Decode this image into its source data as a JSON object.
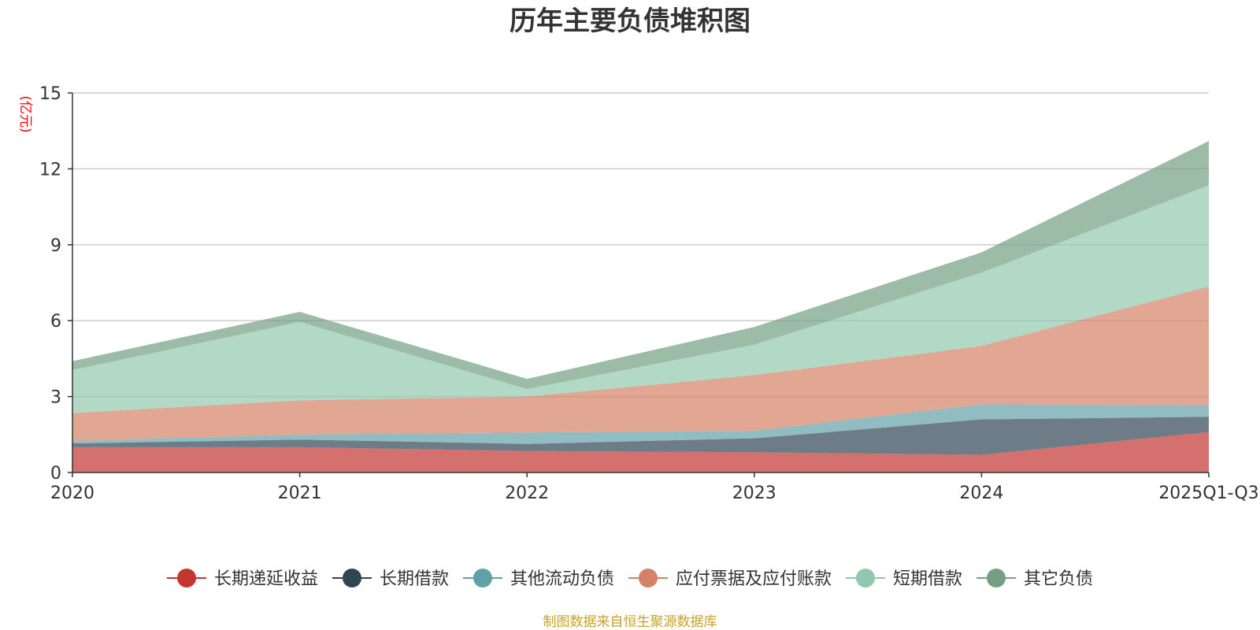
{
  "chart_data": {
    "type": "area",
    "stacked": true,
    "title": "历年主要负债堆积图",
    "ylabel": "(亿元)",
    "xlabel": "",
    "categories": [
      "2020",
      "2021",
      "2022",
      "2023",
      "2024",
      "2025Q1-Q3"
    ],
    "ylim": [
      0,
      15
    ],
    "yticks": [
      0,
      3,
      6,
      9,
      12,
      15
    ],
    "grid": true,
    "legend_position": "bottom",
    "series": [
      {
        "name": "长期递延收益",
        "color": "#c23531",
        "values": [
          1.0,
          1.0,
          0.85,
          0.8,
          0.7,
          1.6
        ]
      },
      {
        "name": "长期借款",
        "color": "#2f4554",
        "values": [
          0.15,
          0.3,
          0.28,
          0.55,
          1.4,
          0.6
        ]
      },
      {
        "name": "其他流动负债",
        "color": "#61a0a8",
        "values": [
          0.1,
          0.2,
          0.45,
          0.3,
          0.6,
          0.45
        ]
      },
      {
        "name": "应付票据及应付账款",
        "color": "#d48265",
        "values": [
          1.1,
          1.35,
          1.42,
          2.2,
          2.3,
          4.7
        ]
      },
      {
        "name": "短期借款",
        "color": "#91c7ae",
        "values": [
          1.7,
          3.1,
          0.3,
          1.2,
          2.9,
          4.0
        ]
      },
      {
        "name": "其它负债",
        "color": "#749f83",
        "values": [
          0.35,
          0.4,
          0.4,
          0.7,
          0.8,
          1.75
        ]
      }
    ]
  },
  "footer": {
    "source": "制图数据来自恒生聚源数据库",
    "source_color": "#c9a227"
  },
  "unit_color": "#ff0000"
}
